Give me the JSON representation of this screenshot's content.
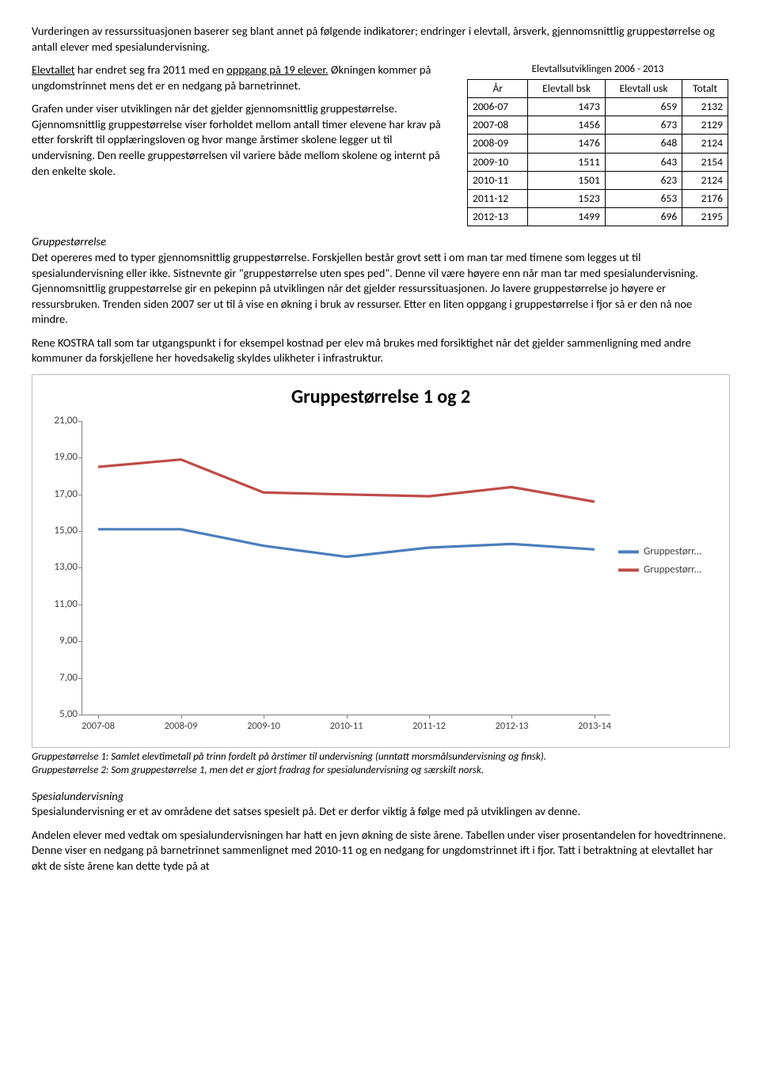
{
  "intro": {
    "p1": "Vurderingen av ressurssituasjonen baserer seg blant annet på følgende indikatorer; endringer i elevtall, årsverk, gjennomsnittlig gruppestørrelse og antall elever med spesialundervisning.",
    "p2a": "Elevtallet",
    "p2b": " har endret seg fra 2011 med en ",
    "p2c": "oppgang på 19 elever.",
    "p2d": " Økningen kommer på ungdomstrinnet mens det er en nedgang på barnetrinnet.",
    "p3": "Grafen under viser utviklingen når det gjelder gjennomsnittlig gruppestørrelse. Gjennomsnittlig gruppestørrelse viser forholdet mellom antall timer elevene har krav på etter forskrift til opplæringsloven og hvor mange årstimer skolene legger ut til undervisning. Den reelle gruppestørrelsen vil variere både mellom skolene og internt på den enkelte skole."
  },
  "elevtable": {
    "caption": "Elevtallsutviklingen 2006 - 2013",
    "headers": [
      "År",
      "Elevtall bsk",
      "Elevtall usk",
      "Totalt"
    ],
    "rows": [
      [
        "2006-07",
        "1473",
        "659",
        "2132"
      ],
      [
        "2007-08",
        "1456",
        "673",
        "2129"
      ],
      [
        "2008-09",
        "1476",
        "648",
        "2124"
      ],
      [
        "2009-10",
        "1511",
        "643",
        "2154"
      ],
      [
        "2010-11",
        "1501",
        "623",
        "2124"
      ],
      [
        "2011-12",
        "1523",
        "653",
        "2176"
      ],
      [
        "2012-13",
        "1499",
        "696",
        "2195"
      ]
    ]
  },
  "gruppe": {
    "heading": "Gruppestørrelse",
    "p1": "Det opereres med to typer gjennomsnittlig gruppestørrelse. Forskjellen består grovt sett i om man tar med timene som legges ut til spesialundervisning eller ikke. Sistnevnte gir \"gruppestørrelse uten spes ped\". Denne vil være høyere enn når man tar med spesialundervisning. Gjennomsnittlig gruppestørrelse gir en pekepinn på utviklingen når det gjelder ressurssituasjonen. Jo lavere gruppestørrelse jo høyere er ressursbruken. Trenden siden 2007 ser ut til å vise en økning i bruk av ressurser. Etter en liten oppgang i gruppestørrelse i fjor så er den nå noe mindre.",
    "p2": "Rene KOSTRA tall som tar utgangspunkt i for eksempel kostnad per elev må brukes med forsiktighet når det gjelder sammenligning med andre kommuner da forskjellene her hovedsakelig skyldes ulikheter i infrastruktur."
  },
  "chart": {
    "title": "Gruppestørrelse 1 og 2",
    "ymin": 5.0,
    "ymax": 21.0,
    "ytick_step": 2.0,
    "ytick_labels": [
      "5,00",
      "7,00",
      "9,00",
      "11,00",
      "13,00",
      "15,00",
      "17,00",
      "19,00",
      "21,00"
    ],
    "categories": [
      "2007-08",
      "2008-09",
      "2009-10",
      "2010-11",
      "2011-12",
      "2012-13",
      "2013-14"
    ],
    "series1": {
      "name": "Gruppestørr...",
      "color": "#4a7ebb",
      "values": [
        15.1,
        15.1,
        14.2,
        13.6,
        14.1,
        14.3,
        14.0
      ]
    },
    "series2": {
      "name": "Gruppestørr...",
      "color": "#be4b48",
      "values": [
        18.5,
        18.9,
        17.1,
        17.0,
        16.9,
        17.4,
        16.6
      ]
    },
    "line_width": 3.2,
    "background_color": "#ffffff",
    "border_color": "#bcbcbc",
    "axis_color": "#808080"
  },
  "chart_caption": {
    "line1": "Gruppestørrelse 1: Samlet elevtimetall på trinn fordelt på årstimer til undervisning (unntatt morsmålsundervisning og finsk).",
    "line2": "Gruppestørrelse 2: Som gruppestørrelse 1, men det er gjort fradrag for spesialundervisning og særskilt norsk."
  },
  "spesial": {
    "heading": "Spesialundervisning",
    "p1": "Spesialundervisning er et av områdene det satses spesielt på. Det er derfor viktig å følge med på utviklingen av denne.",
    "p2": "Andelen elever med vedtak om spesialundervisningen har hatt en jevn økning de siste årene. Tabellen under viser prosentandelen for hovedtrinnene. Denne viser en nedgang på barnetrinnet sammenlignet med 2010-11 og en nedgang for ungdomstrinnet ift i fjor. Tatt i betraktning at elevtallet har økt de siste årene kan dette tyde på at"
  }
}
